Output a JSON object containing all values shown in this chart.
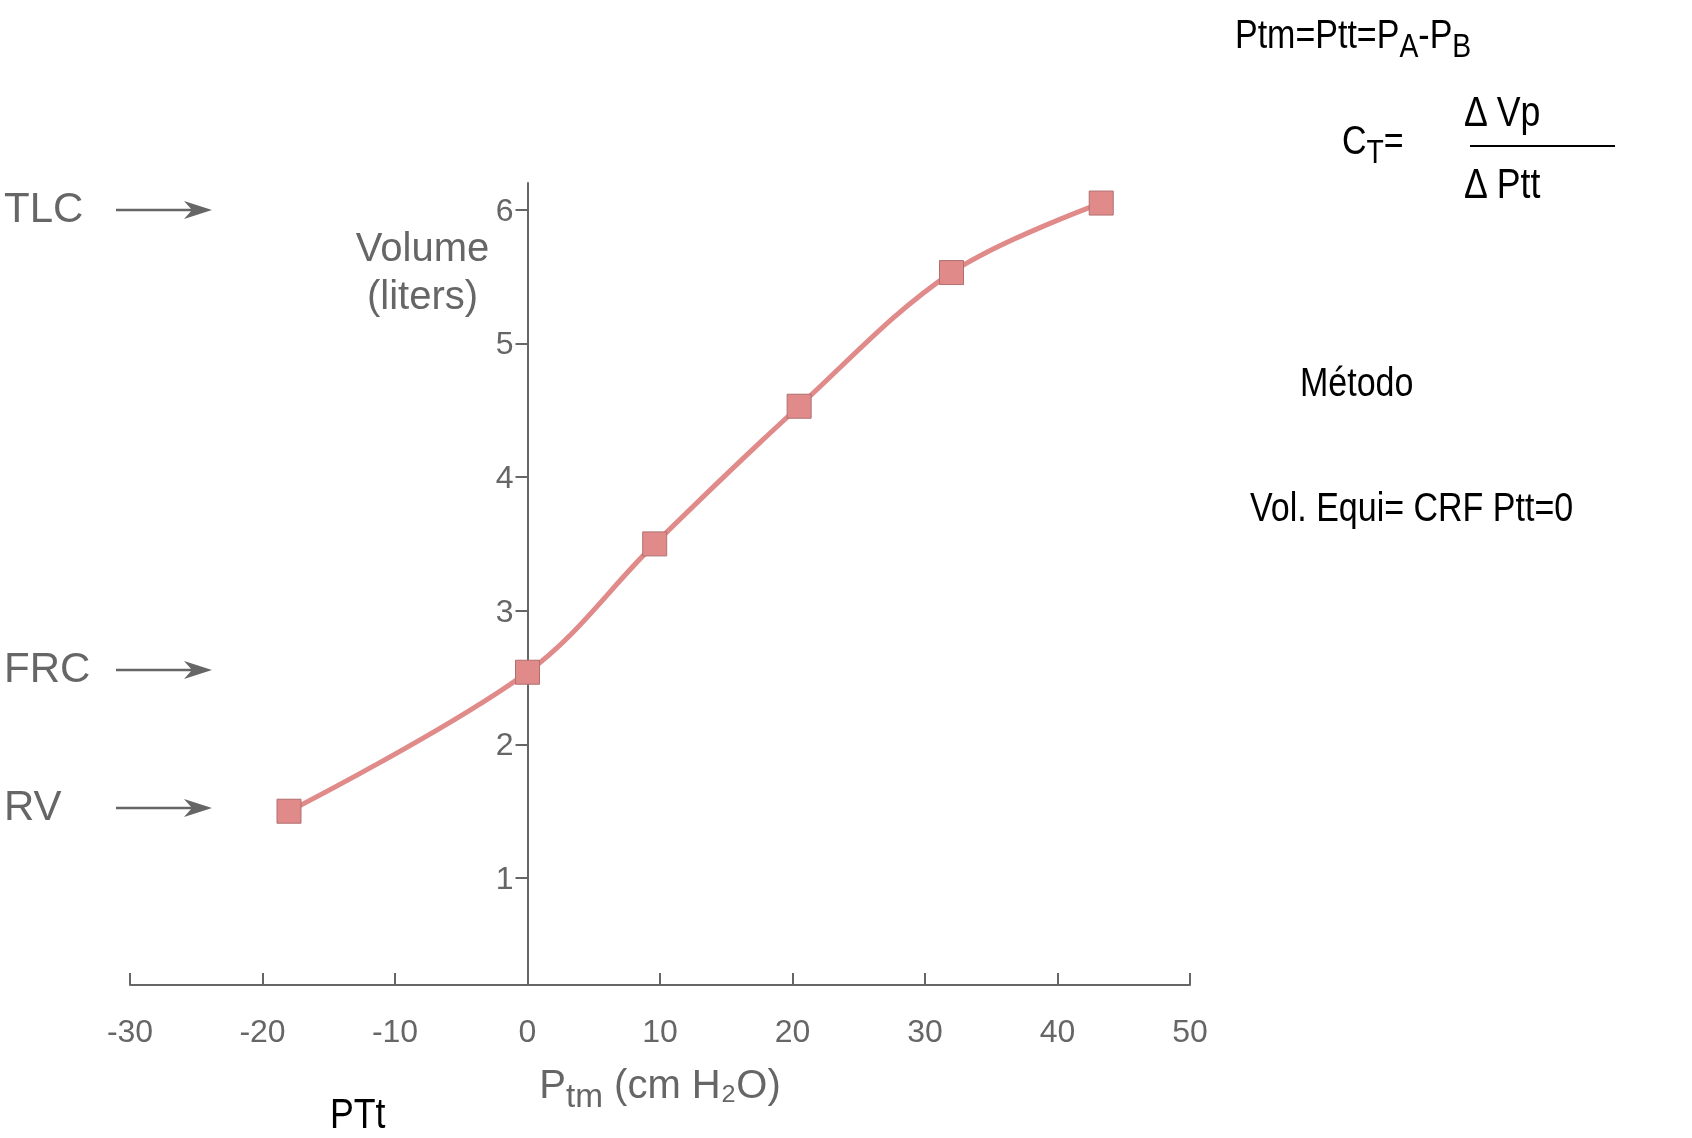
{
  "chart_data": {
    "type": "line",
    "xlabel": "P$_{tm}$ (cm H₂O)",
    "ylabel": "Volume (liters)",
    "x": [
      -18,
      0,
      9.6,
      20.5,
      32,
      43.3
    ],
    "series": [
      {
        "color": "#e08a8a",
        "values": [
          1.5,
          2.54,
          3.5,
          4.53,
          5.53,
          6.05
        ]
      }
    ],
    "xlim": [
      -30,
      50
    ],
    "xticks": [
      -30,
      -20,
      -10,
      0,
      10,
      20,
      30,
      40,
      50
    ],
    "ylim": [
      0.2,
      6.2
    ],
    "yticks": [
      1,
      2,
      3,
      4,
      5,
      6
    ],
    "marker": "square",
    "line_style": "solid",
    "annotations": [
      "TLC",
      "FRC",
      "RV",
      "Ptm=Ptt=P$_{A}$-P$_{B}$",
      "C$_{T}$=",
      "∆  Vp",
      "∆  Ptt",
      "Método",
      "Vol. Equi= CRF Ptt=0",
      "PTt"
    ]
  }
}
